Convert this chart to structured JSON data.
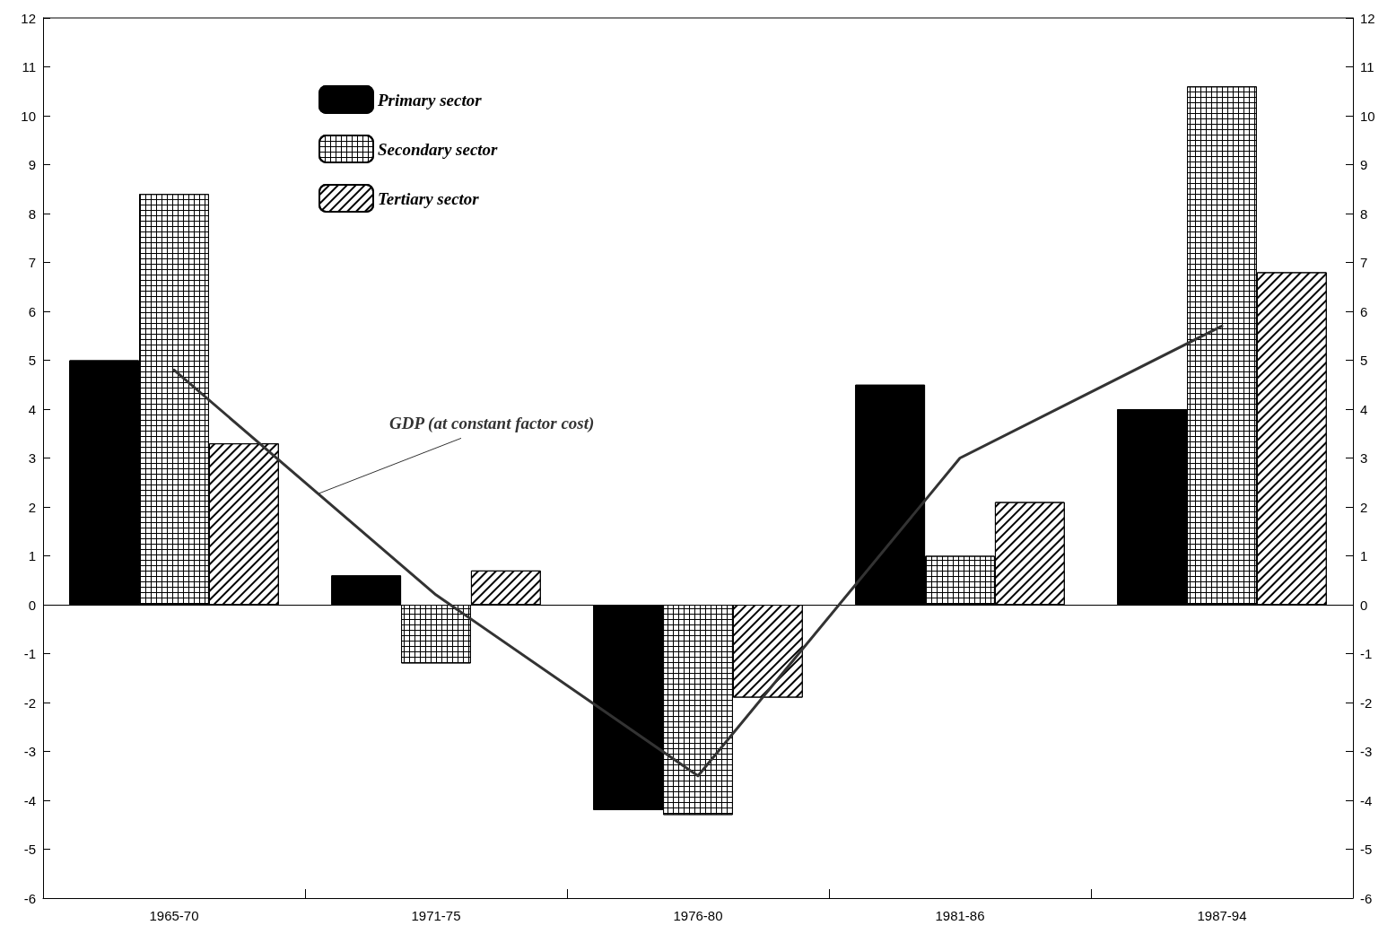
{
  "chart_data": {
    "type": "bar",
    "categories": [
      "1965-70",
      "1971-75",
      "1976-80",
      "1981-86",
      "1987-94"
    ],
    "series": [
      {
        "name": "Primary sector",
        "color": "#000000",
        "values": [
          5.0,
          0.6,
          -4.2,
          4.5,
          4.0
        ]
      },
      {
        "name": "Secondary sector",
        "color": "#ffffff",
        "values": [
          8.4,
          -1.2,
          -4.3,
          1.0,
          10.6
        ]
      },
      {
        "name": "Tertiary sector",
        "color": "#ffffff",
        "values": [
          3.3,
          0.7,
          -1.9,
          2.1,
          6.8
        ]
      },
      {
        "name": "GDP (at constant factor cost)",
        "type": "line",
        "color": "#333333",
        "values": [
          4.8,
          0.2,
          -3.5,
          3.0,
          5.7
        ]
      }
    ],
    "ylim": [
      -6,
      12
    ],
    "yticks": [
      -6,
      -5,
      -4,
      -3,
      -2,
      -1,
      0,
      1,
      2,
      3,
      4,
      5,
      6,
      7,
      8,
      9,
      10,
      11,
      12
    ],
    "y2lim": [
      -6,
      12
    ],
    "y2ticks": [
      -6,
      -5,
      -4,
      -3,
      -2,
      -1,
      0,
      1,
      2,
      3,
      4,
      5,
      6,
      7,
      8,
      9,
      10,
      11,
      12
    ],
    "ref_lines": [
      {
        "axis": "y",
        "value": 0
      }
    ],
    "legend": "top left",
    "marker": "none",
    "line_style": "solid"
  }
}
